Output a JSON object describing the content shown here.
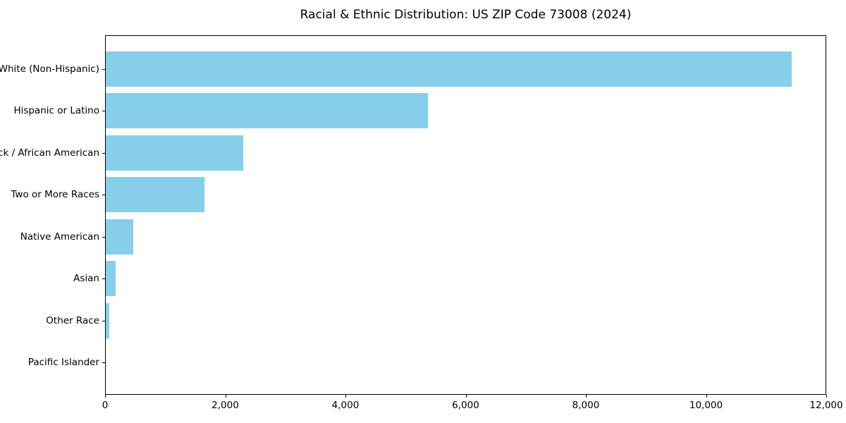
{
  "figure": {
    "background_color": "#ffffff",
    "axis_color": "#000000",
    "text_color": "#000000"
  },
  "chart_data": {
    "type": "bar",
    "orientation": "horizontal",
    "title": "Racial & Ethnic Distribution: US ZIP Code 73008 (2024)",
    "categories": [
      "White (Non-Hispanic)",
      "Hispanic or Latino",
      "Black / African American",
      "Two or More Races",
      "Native American",
      "Asian",
      "Other Race",
      "Pacific Islander"
    ],
    "values": [
      11430,
      5370,
      2290,
      1640,
      455,
      170,
      55,
      0
    ],
    "bar_color": "#87CEEB",
    "xlabel": "",
    "ylabel": "",
    "xlim": [
      0,
      12000
    ],
    "xticks": [
      0,
      2000,
      4000,
      6000,
      8000,
      10000,
      12000
    ],
    "xtick_labels": [
      "0",
      "2,000",
      "4,000",
      "6,000",
      "8,000",
      "10,000",
      "12,000"
    ],
    "grid": false,
    "legend": null
  }
}
